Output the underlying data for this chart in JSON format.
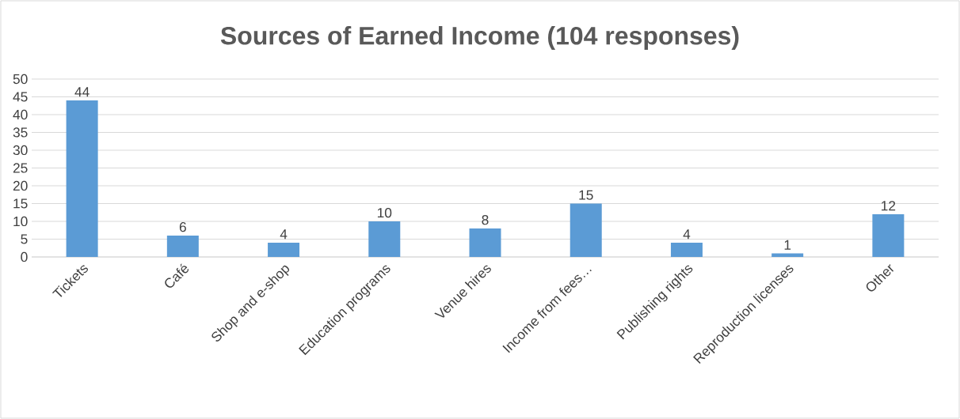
{
  "chart_data": {
    "type": "bar",
    "title": "Sources of Earned Income (104 responses)",
    "categories": [
      "Tickets",
      "Café",
      "Shop and e-shop",
      "Education programs",
      "Venue hires",
      "Income from fees…",
      "Publishing rights",
      "Reproduction licenses",
      "Other"
    ],
    "values": [
      44,
      6,
      4,
      10,
      8,
      15,
      4,
      1,
      12
    ],
    "color": "#5b9bd5",
    "ylim": [
      0,
      50
    ],
    "yticks": [
      0,
      5,
      10,
      15,
      20,
      25,
      30,
      35,
      40,
      45,
      50
    ],
    "grid": "y",
    "data_labels": true
  }
}
